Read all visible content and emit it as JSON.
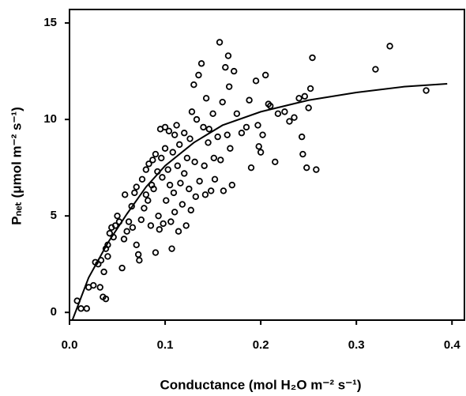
{
  "chart_data": {
    "type": "scatter",
    "x_label": "Conductance (mol H₂O m⁻² s⁻¹)",
    "y_label": "Pₙₑₜ (μmol m⁻² s⁻¹)",
    "xlim": [
      0,
      0.413
    ],
    "ylim": [
      -0.4,
      15.7
    ],
    "xticks": [
      {
        "value": 0,
        "label": "0.0"
      },
      0.1,
      0.2,
      0.3,
      0.4
    ],
    "yticks": [
      0,
      5,
      10,
      15
    ],
    "color": "#000000",
    "x": [
      0.008,
      0.012,
      0.018,
      0.02,
      0.025,
      0.027,
      0.03,
      0.032,
      0.033,
      0.035,
      0.038,
      0.036,
      0.038,
      0.04,
      0.04,
      0.042,
      0.044,
      0.046,
      0.048,
      0.05,
      0.052,
      0.055,
      0.057,
      0.058,
      0.06,
      0.062,
      0.065,
      0.066,
      0.068,
      0.07,
      0.07,
      0.072,
      0.073,
      0.075,
      0.076,
      0.078,
      0.08,
      0.08,
      0.082,
      0.083,
      0.085,
      0.086,
      0.087,
      0.088,
      0.09,
      0.09,
      0.092,
      0.093,
      0.094,
      0.095,
      0.096,
      0.097,
      0.098,
      0.1,
      0.1,
      0.101,
      0.103,
      0.104,
      0.105,
      0.106,
      0.107,
      0.108,
      0.109,
      0.11,
      0.11,
      0.112,
      0.113,
      0.114,
      0.115,
      0.116,
      0.118,
      0.12,
      0.12,
      0.122,
      0.123,
      0.125,
      0.126,
      0.127,
      0.128,
      0.13,
      0.131,
      0.132,
      0.133,
      0.135,
      0.136,
      0.138,
      0.14,
      0.141,
      0.142,
      0.143,
      0.145,
      0.146,
      0.148,
      0.15,
      0.151,
      0.152,
      0.155,
      0.157,
      0.158,
      0.16,
      0.161,
      0.163,
      0.165,
      0.166,
      0.167,
      0.168,
      0.17,
      0.172,
      0.175,
      0.18,
      0.185,
      0.188,
      0.19,
      0.195,
      0.197,
      0.198,
      0.2,
      0.202,
      0.205,
      0.208,
      0.21,
      0.215,
      0.218,
      0.225,
      0.23,
      0.235,
      0.24,
      0.243,
      0.244,
      0.246,
      0.248,
      0.25,
      0.252,
      0.254,
      0.258,
      0.32,
      0.335,
      0.373
    ],
    "values": [
      0.6,
      0.2,
      0.2,
      1.3,
      1.4,
      2.6,
      2.5,
      1.3,
      2.7,
      0.8,
      0.7,
      2.1,
      3.3,
      3.5,
      2.9,
      4.1,
      4.4,
      3.9,
      4.5,
      5.0,
      4.7,
      2.3,
      3.8,
      6.1,
      4.2,
      4.7,
      5.5,
      4.4,
      6.2,
      6.5,
      3.5,
      3.0,
      2.7,
      4.8,
      6.9,
      5.4,
      7.4,
      6.1,
      5.8,
      7.7,
      4.5,
      6.6,
      7.9,
      6.4,
      8.2,
      3.1,
      7.3,
      5.0,
      4.3,
      9.5,
      8.0,
      7.0,
      4.6,
      9.6,
      8.5,
      5.8,
      7.4,
      9.4,
      6.6,
      4.7,
      3.3,
      8.3,
      6.2,
      9.2,
      5.2,
      9.7,
      7.6,
      4.2,
      8.7,
      6.7,
      5.6,
      9.3,
      7.2,
      4.5,
      8.0,
      6.4,
      9.0,
      5.3,
      10.4,
      11.8,
      7.8,
      6.0,
      10.0,
      12.3,
      6.8,
      12.9,
      9.6,
      7.6,
      6.1,
      11.1,
      8.8,
      9.5,
      6.3,
      10.3,
      8.0,
      6.9,
      9.1,
      14.0,
      7.9,
      10.9,
      6.3,
      12.7,
      9.2,
      13.3,
      11.7,
      8.5,
      6.6,
      12.5,
      10.3,
      9.3,
      9.6,
      11.0,
      7.5,
      12.0,
      9.7,
      8.6,
      8.3,
      9.2,
      12.3,
      10.8,
      10.7,
      7.8,
      10.3,
      10.4,
      9.9,
      10.1,
      11.1,
      9.1,
      8.2,
      11.2,
      7.5,
      10.6,
      11.6,
      13.2,
      7.4,
      12.6,
      13.8,
      11.5
    ],
    "fit": {
      "x": [
        0.003,
        0.02,
        0.04,
        0.06,
        0.08,
        0.1,
        0.13,
        0.16,
        0.2,
        0.25,
        0.3,
        0.35,
        0.395
      ],
      "values": [
        -0.4,
        1.8,
        3.6,
        5.1,
        6.5,
        7.6,
        8.8,
        9.7,
        10.4,
        11.0,
        11.4,
        11.7,
        11.85
      ]
    }
  }
}
